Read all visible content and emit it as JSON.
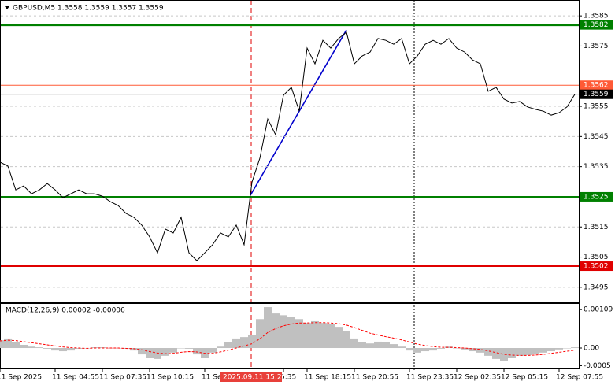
{
  "chart_data": [
    {
      "type": "line",
      "title": "GBPUSD,M5  1.3558 1.3559 1.3557 1.3559",
      "categories": [
        "11 Sep 2025",
        null,
        null,
        null,
        null,
        null,
        null,
        "11 Sep 04:55",
        null,
        null,
        null,
        null,
        null,
        "11 Sep 07:35",
        null,
        null,
        null,
        null,
        null,
        "11 Sep 10:15",
        null,
        null,
        null,
        null,
        null,
        null,
        "11 Se",
        null,
        null,
        null,
        null,
        null,
        null,
        null,
        null,
        null,
        "5:35",
        null,
        null,
        "11 Sep 18:15",
        null,
        null,
        null,
        null,
        null,
        "11 Sep 20:55",
        null,
        null,
        null,
        null,
        null,
        null,
        "11 Sep 23:35",
        null,
        null,
        null,
        null,
        null,
        "12 Sep 02:35",
        null,
        null,
        null,
        null,
        null,
        "12 Sep 05:15",
        null,
        null,
        null,
        null,
        null,
        null,
        "12 Sep 07:55",
        null,
        null
      ],
      "series": [
        {
          "color": "#000000",
          "values": [
            1.35365,
            1.35352,
            1.35273,
            1.35286,
            1.3526,
            1.35273,
            1.35294,
            1.35273,
            1.35247,
            1.3526,
            1.35273,
            1.3526,
            1.3526,
            1.35252,
            1.35234,
            1.35221,
            1.35195,
            1.35182,
            1.35156,
            1.35117,
            1.35064,
            1.35143,
            1.3513,
            1.35182,
            1.35064,
            1.35038,
            1.35064,
            1.35091,
            1.3513,
            1.35117,
            1.35156,
            1.35091,
            1.35299,
            1.35378,
            1.35508,
            1.35456,
            1.35587,
            1.35613,
            1.35534,
            1.35743,
            1.35691,
            1.35769,
            1.35743,
            1.35775,
            1.35796,
            1.35691,
            1.35717,
            1.3573,
            1.35775,
            1.35769,
            1.35756,
            1.35775,
            1.35691,
            1.35717,
            1.35756,
            1.35769,
            1.35756,
            1.35775,
            1.35743,
            1.3573,
            1.35704,
            1.35691,
            1.356,
            1.35613,
            1.35574,
            1.35561,
            1.35566,
            1.35548,
            1.3554,
            1.35534,
            1.35521,
            1.35529,
            1.35548,
            1.3559
          ]
        }
      ],
      "ylim": [
        1.349,
        1.359
      ],
      "yticks": [
        1.3585,
        1.3575,
        1.3555,
        1.3545,
        1.3535,
        1.3515,
        1.3505,
        1.3495
      ],
      "grid": true,
      "levels": [
        {
          "value": 1.3582,
          "color": "#008000"
        },
        {
          "value": 1.3562,
          "color": "#ff5a36"
        },
        {
          "value": 1.3559,
          "color": "#000000"
        },
        {
          "value": 1.3525,
          "color": "#008000"
        },
        {
          "value": 1.3502,
          "color": "#e00000"
        }
      ],
      "cursor_label": "2025.09.11 15:25"
    },
    {
      "type": "bar",
      "title": "MACD(12,26,9) 0.00002 -0.00006",
      "series": [
        {
          "color": "#c0c0c0",
          "values": [
            0.00022,
            0.00027,
            0.00016,
            9e-05,
            4e-05,
            2e-05,
            -2e-05,
            -7e-05,
            -9e-05,
            -7e-05,
            -2e-05,
            0,
            2e-05,
            2e-05,
            0,
            0,
            -2e-05,
            -7e-05,
            -0.00018,
            -0.00029,
            -0.00031,
            -0.00022,
            -0.00013,
            0,
            -2e-05,
            -0.00018,
            -0.00029,
            -0.00013,
            4e-05,
            0.00016,
            0.00027,
            0.00031,
            0.00038,
            0.00082,
            0.00116,
            0.00098,
            0.00093,
            0.00089,
            0.00082,
            0.00071,
            0.00076,
            0.00071,
            0.00067,
            0.0006,
            0.00049,
            0.00027,
            0.00016,
            0.00013,
            0.00018,
            0.00016,
            0.00011,
            4e-05,
            -7e-05,
            -0.00013,
            -9e-05,
            -7e-05,
            -2e-05,
            4e-05,
            0,
            -4e-05,
            -9e-05,
            -0.00013,
            -0.00022,
            -0.00031,
            -0.00036,
            -0.00029,
            -0.00022,
            -0.0002,
            -0.00016,
            -0.00013,
            -9e-05,
            -4e-05,
            0,
            2e-05
          ]
        },
        {
          "color": "#ff0000",
          "values": [
            0.0002,
            0.00022,
            0.00021,
            0.00018,
            0.00015,
            0.00012,
            9e-05,
            6e-05,
            3e-05,
            1e-05,
            0,
            -1e-05,
            0,
            0,
            0,
            0,
            -1e-05,
            -2e-05,
            -5e-05,
            -0.0001,
            -0.00014,
            -0.00016,
            -0.00015,
            -0.00012,
            -0.0001,
            -0.00011,
            -0.00015,
            -0.00015,
            -0.00011,
            -6e-05,
            0,
            6e-05,
            0.00012,
            0.00026,
            0.00044,
            0.00055,
            0.00063,
            0.00068,
            0.00071,
            0.00071,
            0.00072,
            0.00072,
            0.00071,
            0.00069,
            0.00065,
            0.00058,
            0.0005,
            0.00042,
            0.00037,
            0.00032,
            0.00028,
            0.00023,
            0.00017,
            0.00011,
            7e-05,
            4e-05,
            2e-05,
            2e-05,
            1e-05,
            0,
            -2e-05,
            -4e-05,
            -8e-05,
            -0.00013,
            -0.00018,
            -0.0002,
            -0.00021,
            -0.00021,
            -0.0002,
            -0.00018,
            -0.00015,
            -0.00012,
            -9e-05,
            -6e-05
          ]
        }
      ],
      "ylim": [
        -0.00058,
        0.00125
      ],
      "yticks": [
        0.00109,
        {
          "value": 0,
          "label": "0.00"
        },
        -0.0005
      ]
    }
  ]
}
